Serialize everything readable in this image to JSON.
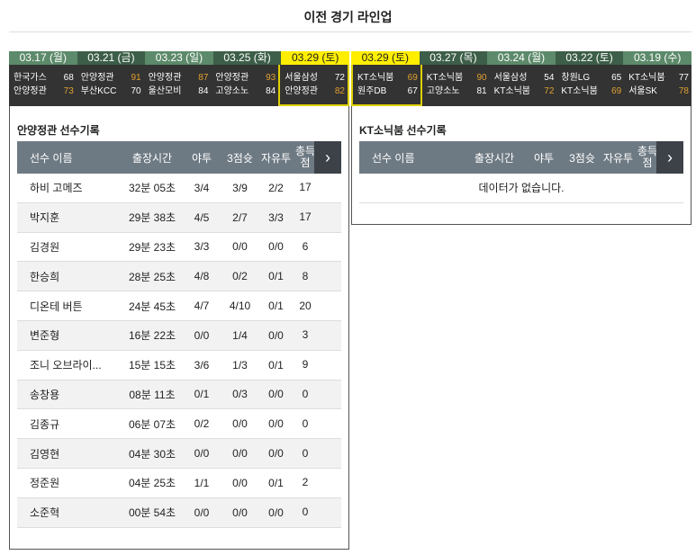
{
  "page_title": "이전 경기 라인업",
  "left_games": [
    {
      "date": "03.17 (월)",
      "t1": "한국가스",
      "s1": "68",
      "t2": "안양정관",
      "s2": "73",
      "win": 2,
      "selected": false
    },
    {
      "date": "03.21 (금)",
      "t1": "안양정관",
      "s1": "91",
      "t2": "부산KCC",
      "s2": "70",
      "win": 1,
      "selected": false
    },
    {
      "date": "03.23 (일)",
      "t1": "안양정관",
      "s1": "87",
      "t2": "울산모비",
      "s2": "84",
      "win": 1,
      "selected": false
    },
    {
      "date": "03.25 (화)",
      "t1": "안양정관",
      "s1": "93",
      "t2": "고양소노",
      "s2": "84",
      "win": 1,
      "selected": false
    },
    {
      "date": "03.29 (토)",
      "t1": "서울삼성",
      "s1": "72",
      "t2": "안양정관",
      "s2": "82",
      "win": 2,
      "selected": true
    }
  ],
  "right_games": [
    {
      "date": "03.29 (토)",
      "t1": "KT소닉붐",
      "s1": "69",
      "t2": "원주DB",
      "s2": "67",
      "win": 1,
      "selected": true
    },
    {
      "date": "03.27 (목)",
      "t1": "KT소닉붐",
      "s1": "90",
      "t2": "고양소노",
      "s2": "81",
      "win": 1,
      "selected": false
    },
    {
      "date": "03.24 (월)",
      "t1": "서울삼성",
      "s1": "54",
      "t2": "KT소닉붐",
      "s2": "72",
      "win": 2,
      "selected": false
    },
    {
      "date": "03.22 (토)",
      "t1": "창원LG",
      "s1": "65",
      "t2": "KT소닉붐",
      "s2": "69",
      "win": 2,
      "selected": false
    },
    {
      "date": "03.19 (수)",
      "t1": "KT소닉붐",
      "s1": "77",
      "t2": "서울SK",
      "s2": "78",
      "win": 2,
      "selected": false
    }
  ],
  "columns": [
    "선수 이름",
    "출장시간",
    "야투",
    "3점슛",
    "자유투",
    "총득점"
  ],
  "left_panel": {
    "title": "안양정관 선수기록",
    "rows": [
      [
        "하비 고메즈",
        "32분 05초",
        "3/4",
        "3/9",
        "2/2",
        "17"
      ],
      [
        "박지훈",
        "29분 38초",
        "4/5",
        "2/7",
        "3/3",
        "17"
      ],
      [
        "김경원",
        "29분 23초",
        "3/3",
        "0/0",
        "0/0",
        "6"
      ],
      [
        "한승희",
        "28분 25초",
        "4/8",
        "0/2",
        "0/1",
        "8"
      ],
      [
        "디온테 버튼",
        "24분 45초",
        "4/7",
        "4/10",
        "0/1",
        "20"
      ],
      [
        "변준형",
        "16분 22초",
        "0/0",
        "1/4",
        "0/0",
        "3"
      ],
      [
        "조니 오브라이...",
        "15분 15초",
        "3/6",
        "1/3",
        "0/1",
        "9"
      ],
      [
        "송창용",
        "08분 11초",
        "0/1",
        "0/3",
        "0/0",
        "0"
      ],
      [
        "김종규",
        "06분 07초",
        "0/2",
        "0/0",
        "0/0",
        "0"
      ],
      [
        "김영현",
        "04분 30초",
        "0/0",
        "0/0",
        "0/0",
        "0"
      ],
      [
        "정준원",
        "04분 25초",
        "1/1",
        "0/0",
        "0/1",
        "2"
      ],
      [
        "소준혁",
        "00분 54초",
        "0/0",
        "0/0",
        "0/0",
        "0"
      ]
    ]
  },
  "right_panel": {
    "title": "KT소닉붐 선수기록",
    "empty": "데이터가 없습니다."
  },
  "colors": {
    "win_score": "#e0a030",
    "selected_tab": "#ffee00",
    "header": "#6e7a83"
  }
}
